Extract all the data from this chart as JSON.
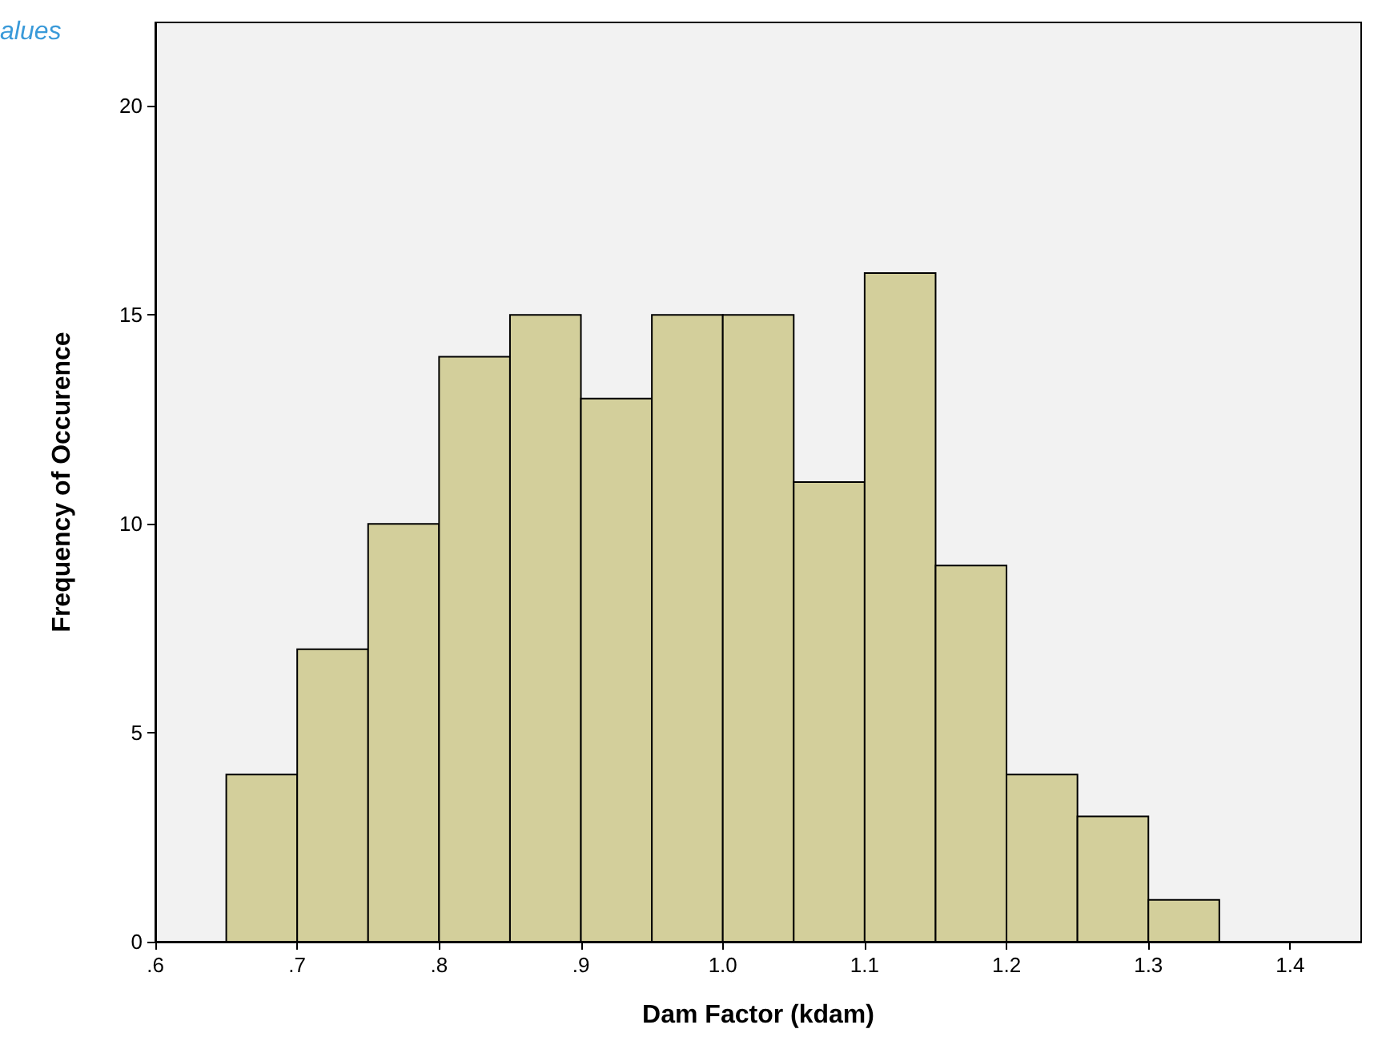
{
  "chart_data": {
    "type": "histogram",
    "xlabel": "Dam Factor (kdam)",
    "ylabel": "Frequency of Occurence",
    "annotations": [
      "alues"
    ],
    "bins": [
      0.65,
      0.7,
      0.75,
      0.8,
      0.85,
      0.9,
      0.95,
      1.0,
      1.05,
      1.1,
      1.15,
      1.2,
      1.25,
      1.3,
      1.35
    ],
    "values": [
      4,
      7,
      10,
      14,
      15,
      13,
      15,
      15,
      11,
      16,
      9,
      4,
      3,
      1
    ],
    "color": "#d3cf9b",
    "xlim": [
      0.6,
      1.45
    ],
    "xticks": [
      {
        "value": 0.6,
        "label": ".6"
      },
      {
        "value": 0.7,
        "label": ".7"
      },
      {
        "value": 0.8,
        "label": ".8"
      },
      {
        "value": 0.9,
        "label": ".9"
      },
      {
        "value": 1.0,
        "label": "1.0"
      },
      {
        "value": 1.1,
        "label": "1.1"
      },
      {
        "value": 1.2,
        "label": "1.2"
      },
      {
        "value": 1.3,
        "label": "1.3"
      },
      {
        "value": 1.4,
        "label": "1.4"
      }
    ],
    "ylim": [
      0,
      22
    ],
    "yticks": [
      0,
      5,
      10,
      15,
      20
    ],
    "grid": false
  }
}
